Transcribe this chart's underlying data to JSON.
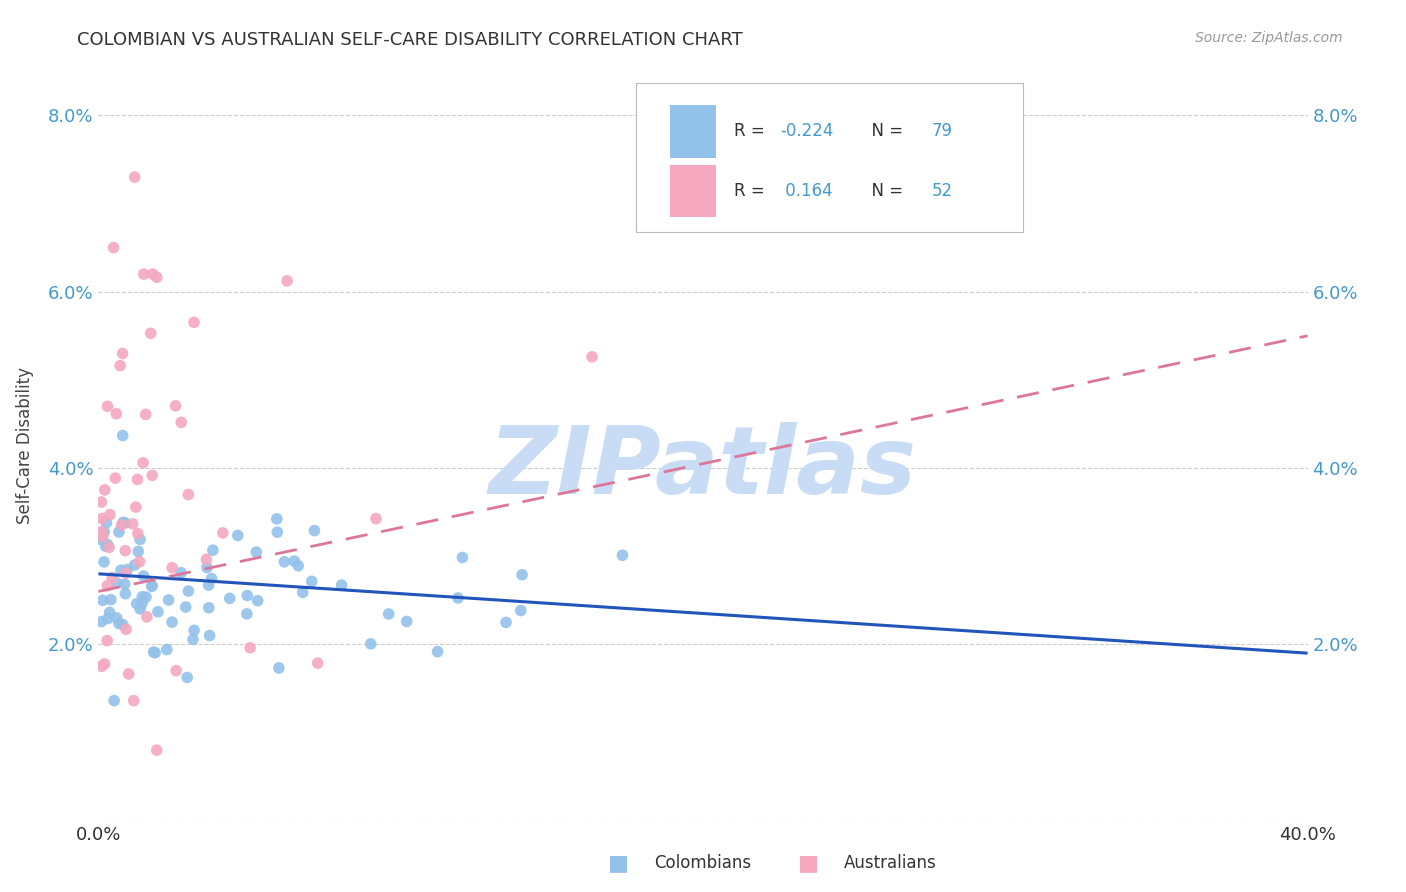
{
  "title": "COLOMBIAN VS AUSTRALIAN SELF-CARE DISABILITY CORRELATION CHART",
  "source": "Source: ZipAtlas.com",
  "ylabel": "Self-Care Disability",
  "xlim": [
    0.0,
    0.4
  ],
  "ylim": [
    0.0,
    0.085
  ],
  "colombian_R": -0.224,
  "colombian_N": 79,
  "australian_R": 0.164,
  "australian_N": 52,
  "colombian_color": "#92c1ea",
  "australian_color": "#f5a8bf",
  "colombian_line_color": "#2255bb",
  "australian_line_color": "#dd7799",
  "background_color": "#ffffff",
  "grid_color": "#cccccc",
  "watermark_color": "#c8ddf5",
  "tick_color": "#4499cc",
  "title_color": "#333333",
  "source_color": "#999999"
}
